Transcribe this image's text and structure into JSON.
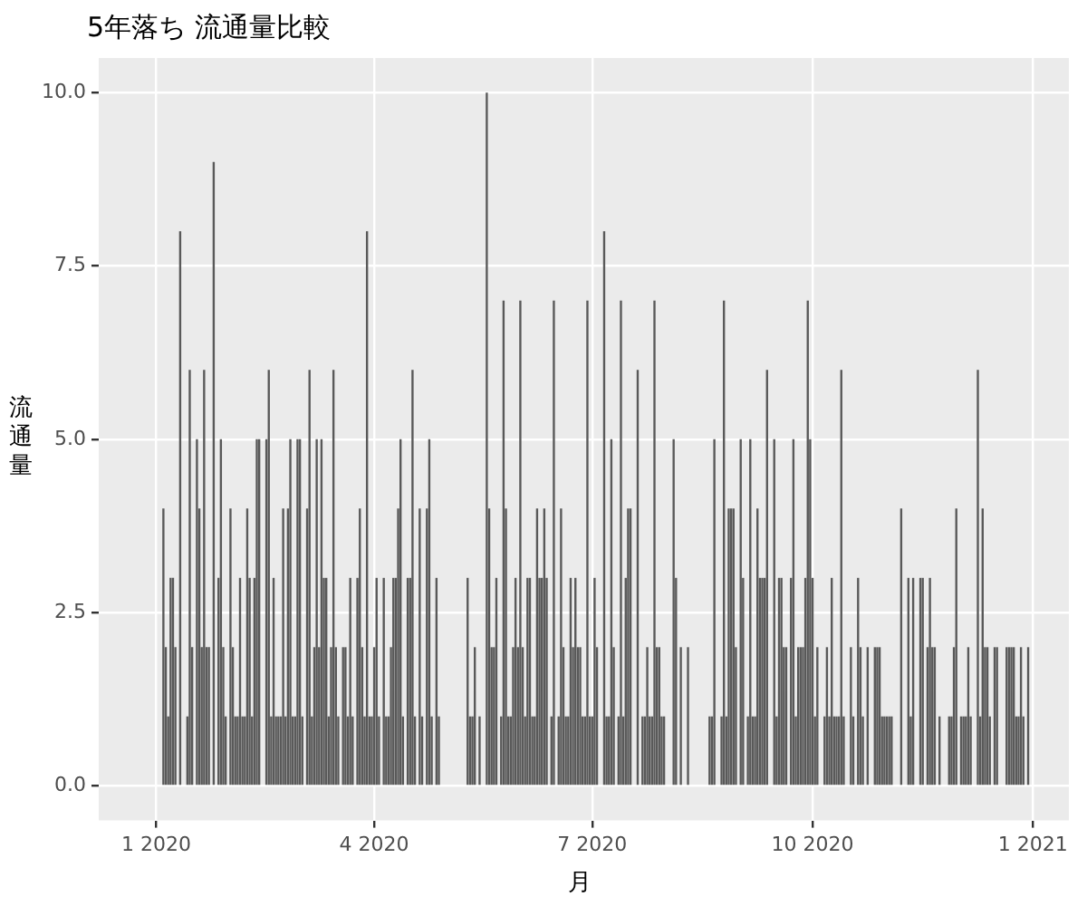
{
  "chart_data": {
    "type": "bar",
    "title": "5年落ち 流通量比較",
    "xlabel": "月",
    "ylabel": "流通量",
    "color": "#595959",
    "grid": true,
    "xlim": [
      "2019-12-08",
      "2021-01-16"
    ],
    "xticks": [
      {
        "value": "2020-01-01",
        "label": "1 2020"
      },
      {
        "value": "2020-04-01",
        "label": "4 2020"
      },
      {
        "value": "2020-07-01",
        "label": "7 2020"
      },
      {
        "value": "2020-10-01",
        "label": "10 2020"
      },
      {
        "value": "2021-01-01",
        "label": "1 2021"
      }
    ],
    "ylim": [
      -0.5,
      10.5
    ],
    "yticks": [
      {
        "value": 0,
        "label": "0.0"
      },
      {
        "value": 2.5,
        "label": "2.5"
      },
      {
        "value": 5,
        "label": "5.0"
      },
      {
        "value": 7.5,
        "label": "7.5"
      },
      {
        "value": 10,
        "label": "10.0"
      }
    ],
    "x": [
      "2020-01-04",
      "2020-01-05",
      "2020-01-06",
      "2020-01-07",
      "2020-01-08",
      "2020-01-09",
      "2020-01-11",
      "2020-01-14",
      "2020-01-15",
      "2020-01-16",
      "2020-01-18",
      "2020-01-19",
      "2020-01-20",
      "2020-01-21",
      "2020-01-22",
      "2020-01-23",
      "2020-01-25",
      "2020-01-27",
      "2020-01-28",
      "2020-01-29",
      "2020-01-30",
      "2020-02-01",
      "2020-02-02",
      "2020-02-03",
      "2020-02-04",
      "2020-02-05",
      "2020-02-06",
      "2020-02-07",
      "2020-02-08",
      "2020-02-09",
      "2020-02-10",
      "2020-02-11",
      "2020-02-12",
      "2020-02-13",
      "2020-02-16",
      "2020-02-17",
      "2020-02-18",
      "2020-02-19",
      "2020-02-20",
      "2020-02-21",
      "2020-02-22",
      "2020-02-23",
      "2020-02-24",
      "2020-02-25",
      "2020-02-26",
      "2020-02-27",
      "2020-02-28",
      "2020-02-29",
      "2020-03-01",
      "2020-03-02",
      "2020-03-04",
      "2020-03-05",
      "2020-03-06",
      "2020-03-07",
      "2020-03-08",
      "2020-03-09",
      "2020-03-10",
      "2020-03-11",
      "2020-03-12",
      "2020-03-13",
      "2020-03-14",
      "2020-03-15",
      "2020-03-16",
      "2020-03-17",
      "2020-03-19",
      "2020-03-20",
      "2020-03-21",
      "2020-03-22",
      "2020-03-23",
      "2020-03-25",
      "2020-03-26",
      "2020-03-27",
      "2020-03-28",
      "2020-03-29",
      "2020-03-30",
      "2020-03-31",
      "2020-04-01",
      "2020-04-02",
      "2020-04-03",
      "2020-04-05",
      "2020-04-06",
      "2020-04-07",
      "2020-04-08",
      "2020-04-09",
      "2020-04-10",
      "2020-04-11",
      "2020-04-12",
      "2020-04-13",
      "2020-04-15",
      "2020-04-16",
      "2020-04-17",
      "2020-04-18",
      "2020-04-20",
      "2020-04-21",
      "2020-04-23",
      "2020-04-24",
      "2020-04-25",
      "2020-04-27",
      "2020-04-28",
      "2020-05-10",
      "2020-05-11",
      "2020-05-12",
      "2020-05-13",
      "2020-05-15",
      "2020-05-18",
      "2020-05-19",
      "2020-05-20",
      "2020-05-21",
      "2020-05-22",
      "2020-05-24",
      "2020-05-25",
      "2020-05-26",
      "2020-05-27",
      "2020-05-28",
      "2020-05-29",
      "2020-05-30",
      "2020-05-31",
      "2020-06-01",
      "2020-06-02",
      "2020-06-03",
      "2020-06-04",
      "2020-06-05",
      "2020-06-06",
      "2020-06-07",
      "2020-06-08",
      "2020-06-09",
      "2020-06-10",
      "2020-06-11",
      "2020-06-12",
      "2020-06-14",
      "2020-06-15",
      "2020-06-17",
      "2020-06-18",
      "2020-06-19",
      "2020-06-20",
      "2020-06-21",
      "2020-06-22",
      "2020-06-23",
      "2020-06-24",
      "2020-06-25",
      "2020-06-26",
      "2020-06-27",
      "2020-06-28",
      "2020-06-29",
      "2020-06-30",
      "2020-07-01",
      "2020-07-02",
      "2020-07-03",
      "2020-07-06",
      "2020-07-07",
      "2020-07-08",
      "2020-07-09",
      "2020-07-10",
      "2020-07-12",
      "2020-07-13",
      "2020-07-14",
      "2020-07-15",
      "2020-07-16",
      "2020-07-17",
      "2020-07-20",
      "2020-07-22",
      "2020-07-23",
      "2020-07-24",
      "2020-07-25",
      "2020-07-26",
      "2020-07-27",
      "2020-07-28",
      "2020-07-29",
      "2020-07-30",
      "2020-07-31",
      "2020-08-04",
      "2020-08-05",
      "2020-08-07",
      "2020-08-10",
      "2020-08-19",
      "2020-08-20",
      "2020-08-21",
      "2020-08-24",
      "2020-08-25",
      "2020-08-26",
      "2020-08-27",
      "2020-08-28",
      "2020-08-29",
      "2020-08-30",
      "2020-09-01",
      "2020-09-02",
      "2020-09-04",
      "2020-09-05",
      "2020-09-06",
      "2020-09-07",
      "2020-09-08",
      "2020-09-09",
      "2020-09-10",
      "2020-09-11",
      "2020-09-12",
      "2020-09-15",
      "2020-09-16",
      "2020-09-17",
      "2020-09-18",
      "2020-09-19",
      "2020-09-20",
      "2020-09-22",
      "2020-09-23",
      "2020-09-24",
      "2020-09-25",
      "2020-09-26",
      "2020-09-27",
      "2020-09-28",
      "2020-09-29",
      "2020-09-30",
      "2020-10-01",
      "2020-10-02",
      "2020-10-03",
      "2020-10-06",
      "2020-10-07",
      "2020-10-08",
      "2020-10-09",
      "2020-10-10",
      "2020-10-11",
      "2020-10-12",
      "2020-10-13",
      "2020-10-14",
      "2020-10-17",
      "2020-10-18",
      "2020-10-20",
      "2020-10-21",
      "2020-10-22",
      "2020-10-24",
      "2020-10-27",
      "2020-10-28",
      "2020-10-29",
      "2020-10-30",
      "2020-10-31",
      "2020-11-01",
      "2020-11-02",
      "2020-11-03",
      "2020-11-07",
      "2020-11-10",
      "2020-11-11",
      "2020-11-12",
      "2020-11-15",
      "2020-11-16",
      "2020-11-18",
      "2020-11-19",
      "2020-11-20",
      "2020-11-21",
      "2020-11-23",
      "2020-11-27",
      "2020-11-28",
      "2020-11-29",
      "2020-11-30",
      "2020-12-02",
      "2020-12-03",
      "2020-12-04",
      "2020-12-05",
      "2020-12-06",
      "2020-12-09",
      "2020-12-10",
      "2020-12-11",
      "2020-12-12",
      "2020-12-13",
      "2020-12-14",
      "2020-12-16",
      "2020-12-17",
      "2020-12-21",
      "2020-12-22",
      "2020-12-23",
      "2020-12-24",
      "2020-12-25",
      "2020-12-26",
      "2020-12-27",
      "2020-12-28",
      "2020-12-30"
    ],
    "values": [
      4,
      2,
      1,
      3,
      3,
      2,
      8,
      1,
      6,
      2,
      5,
      4,
      2,
      6,
      2,
      2,
      9,
      3,
      5,
      2,
      1,
      4,
      2,
      1,
      1,
      3,
      1,
      1,
      4,
      3,
      1,
      3,
      5,
      5,
      5,
      6,
      1,
      3,
      1,
      1,
      1,
      4,
      1,
      4,
      5,
      1,
      1,
      5,
      5,
      1,
      4,
      6,
      1,
      2,
      5,
      2,
      5,
      3,
      3,
      1,
      2,
      6,
      2,
      1,
      2,
      2,
      1,
      3,
      1,
      3,
      4,
      2,
      1,
      8,
      1,
      1,
      2,
      3,
      1,
      3,
      1,
      1,
      2,
      3,
      3,
      4,
      5,
      1,
      3,
      3,
      6,
      1,
      4,
      1,
      4,
      5,
      1,
      3,
      1,
      3,
      1,
      1,
      2,
      1,
      10,
      4,
      2,
      2,
      3,
      1,
      7,
      4,
      1,
      1,
      2,
      3,
      2,
      7,
      2,
      1,
      3,
      3,
      1,
      1,
      4,
      3,
      3,
      4,
      3,
      1,
      7,
      1,
      4,
      2,
      1,
      1,
      3,
      2,
      3,
      2,
      2,
      1,
      1,
      7,
      1,
      1,
      3,
      2,
      8,
      1,
      1,
      5,
      2,
      1,
      7,
      1,
      3,
      4,
      4,
      6,
      1,
      1,
      2,
      1,
      1,
      7,
      2,
      2,
      1,
      1,
      5,
      3,
      2,
      2,
      1,
      1,
      5,
      1,
      7,
      1,
      4,
      4,
      4,
      2,
      5,
      3,
      1,
      5,
      1,
      1,
      4,
      3,
      3,
      3,
      6,
      5,
      1,
      3,
      3,
      2,
      2,
      3,
      5,
      1,
      2,
      2,
      2,
      3,
      7,
      5,
      3,
      1,
      2,
      1,
      2,
      1,
      3,
      1,
      1,
      1,
      6,
      1,
      2,
      1,
      3,
      2,
      1,
      2,
      2,
      2,
      2,
      1,
      1,
      1,
      1,
      1,
      4,
      3,
      1,
      3,
      3,
      3,
      2,
      3,
      2,
      2,
      1,
      1,
      1,
      2,
      4,
      1,
      1,
      1,
      2,
      1,
      6,
      1,
      4,
      2,
      2,
      1,
      2,
      2,
      2,
      2,
      2,
      2,
      1,
      1,
      2,
      1,
      2
    ]
  }
}
